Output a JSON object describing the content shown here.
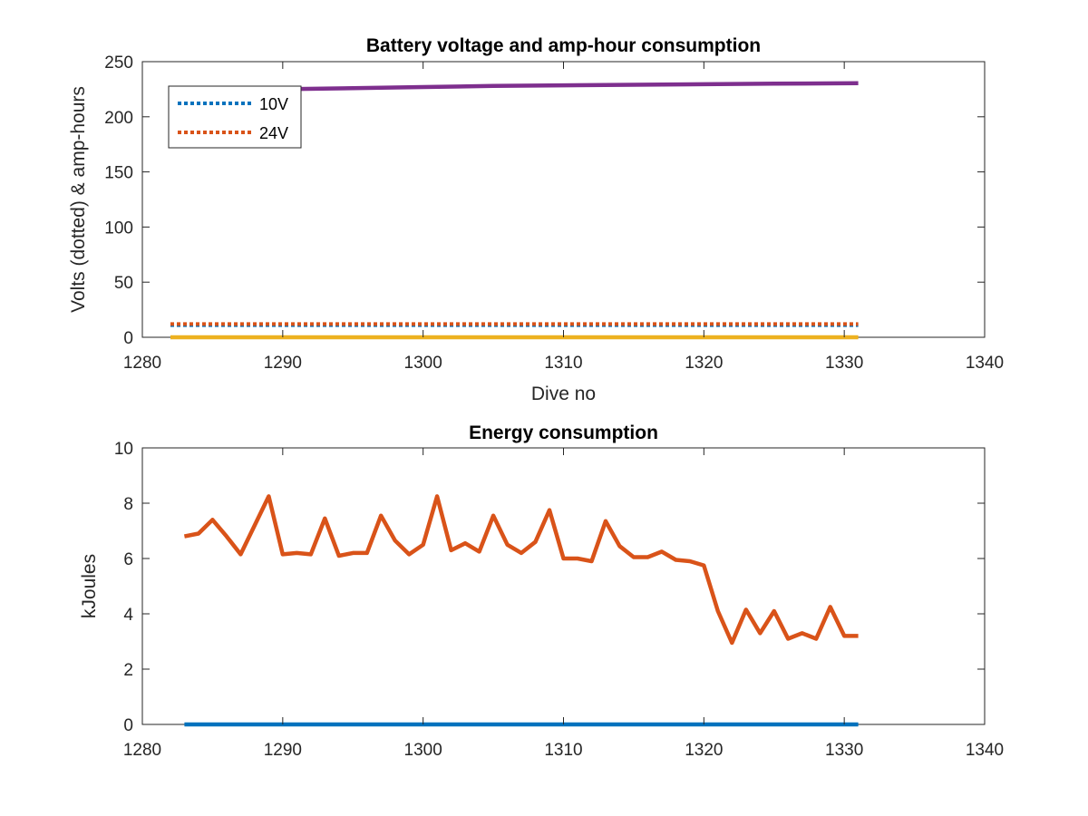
{
  "chart_data": [
    {
      "type": "line",
      "title": "Battery voltage and amp-hour consumption",
      "xlabel": "Dive no",
      "ylabel": "Volts (dotted) & amp-hours",
      "xlim": [
        1280,
        1340
      ],
      "ylim": [
        0,
        250
      ],
      "xticks": [
        1280,
        1290,
        1300,
        1310,
        1320,
        1330,
        1340
      ],
      "yticks": [
        0,
        50,
        100,
        150,
        200,
        250
      ],
      "grid": false,
      "legend_position": "top-left",
      "series": [
        {
          "name": "10V",
          "color": "#0072BD",
          "style": "dotted",
          "x": [
            1282,
            1331
          ],
          "y": [
            11,
            11
          ]
        },
        {
          "name": "24V",
          "color": "#D95319",
          "style": "dotted",
          "x": [
            1282,
            1331
          ],
          "y": [
            12,
            12
          ]
        },
        {
          "color": "#EDB120",
          "style": "solid",
          "x": [
            1282,
            1331
          ],
          "y": [
            0,
            0
          ]
        },
        {
          "color": "#7E2F8E",
          "style": "solid",
          "x": [
            1288,
            1290,
            1295,
            1300,
            1305,
            1310,
            1315,
            1320,
            1325,
            1331
          ],
          "y": [
            224,
            225,
            226,
            227,
            228,
            228.5,
            229,
            229.5,
            230,
            230.5
          ]
        }
      ]
    },
    {
      "type": "line",
      "title": "Energy consumption",
      "xlabel": "",
      "ylabel": "kJoules",
      "xlim": [
        1280,
        1340
      ],
      "ylim": [
        0,
        10
      ],
      "xticks": [
        1280,
        1290,
        1300,
        1310,
        1320,
        1330,
        1340
      ],
      "yticks": [
        0,
        2,
        4,
        6,
        8,
        10
      ],
      "grid": false,
      "series": [
        {
          "color": "#0072BD",
          "style": "solid",
          "x": [
            1283,
            1331
          ],
          "y": [
            0,
            0
          ]
        },
        {
          "color": "#D95319",
          "style": "solid",
          "x": [
            1283,
            1284,
            1285,
            1286,
            1287,
            1288,
            1289,
            1290,
            1291,
            1292,
            1293,
            1294,
            1295,
            1296,
            1297,
            1298,
            1299,
            1300,
            1301,
            1302,
            1303,
            1304,
            1305,
            1306,
            1307,
            1308,
            1309,
            1310,
            1311,
            1312,
            1313,
            1314,
            1315,
            1316,
            1317,
            1318,
            1319,
            1320,
            1321,
            1322,
            1323,
            1324,
            1325,
            1326,
            1327,
            1328,
            1329,
            1330,
            1331
          ],
          "y": [
            6.8,
            6.9,
            7.4,
            6.8,
            6.15,
            7.2,
            8.25,
            6.15,
            6.2,
            6.15,
            7.45,
            6.1,
            6.2,
            6.2,
            7.55,
            6.65,
            6.15,
            6.5,
            8.25,
            6.3,
            6.55,
            6.25,
            7.55,
            6.5,
            6.2,
            6.6,
            7.75,
            6.0,
            6.0,
            5.9,
            7.35,
            6.45,
            6.05,
            6.05,
            6.25,
            5.95,
            5.9,
            5.75,
            4.1,
            2.95,
            4.15,
            3.3,
            4.1,
            3.1,
            3.3,
            3.1,
            4.25,
            3.2,
            3.2
          ]
        }
      ]
    }
  ]
}
